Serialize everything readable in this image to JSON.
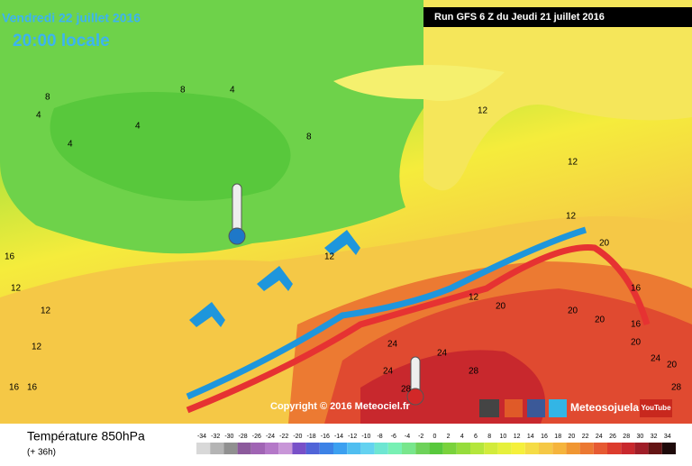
{
  "header": {
    "title": "Vendredi 22 juillet 2016",
    "time": "20:00 locale",
    "run": "Run GFS 6 Z du Jeudi 21 juillet 2016"
  },
  "map": {
    "contour_labels": [
      "4",
      "4",
      "8",
      "4",
      "8",
      "4",
      "8",
      "12",
      "16",
      "12",
      "12",
      "16",
      "16",
      "12",
      "12",
      "12",
      "12",
      "12",
      "16",
      "16",
      "20",
      "20",
      "20",
      "24",
      "24",
      "20",
      "28",
      "24",
      "20",
      "24",
      "28",
      "28",
      "20"
    ],
    "copyright": "Copyright © 2016 Meteociel.fr",
    "brand": "Meteosojuela",
    "youtube": "YouTube"
  },
  "footer": {
    "variable": "Température 850hPa",
    "lead": "(+ 36h)"
  },
  "legend": {
    "ticks": [
      -34,
      -32,
      -30,
      -28,
      -26,
      -24,
      -22,
      -20,
      -18,
      -16,
      -14,
      -12,
      -10,
      -8,
      -6,
      -4,
      -2,
      0,
      2,
      4,
      6,
      8,
      10,
      12,
      14,
      16,
      18,
      20,
      22,
      24,
      26,
      28,
      30,
      32,
      34
    ],
    "colors": [
      "#d8d8d8",
      "#b4b4b4",
      "#909090",
      "#8c5a9c",
      "#a064b4",
      "#b478c8",
      "#c896d8",
      "#7850c8",
      "#5064d8",
      "#3c82e6",
      "#3ca0f0",
      "#50bef0",
      "#64d2f0",
      "#6ee6d2",
      "#78f0b4",
      "#78e68c",
      "#6ed25a",
      "#58c83c",
      "#7ad23c",
      "#96dc3c",
      "#b4e63c",
      "#d2eb3c",
      "#e6f03c",
      "#f5f03c",
      "#f5dc46",
      "#f5c846",
      "#f5b43c",
      "#f09632",
      "#eb7832",
      "#e65a32",
      "#dc3c2d",
      "#c8282d",
      "#a01e28",
      "#641414",
      "#1e0a0a"
    ]
  }
}
